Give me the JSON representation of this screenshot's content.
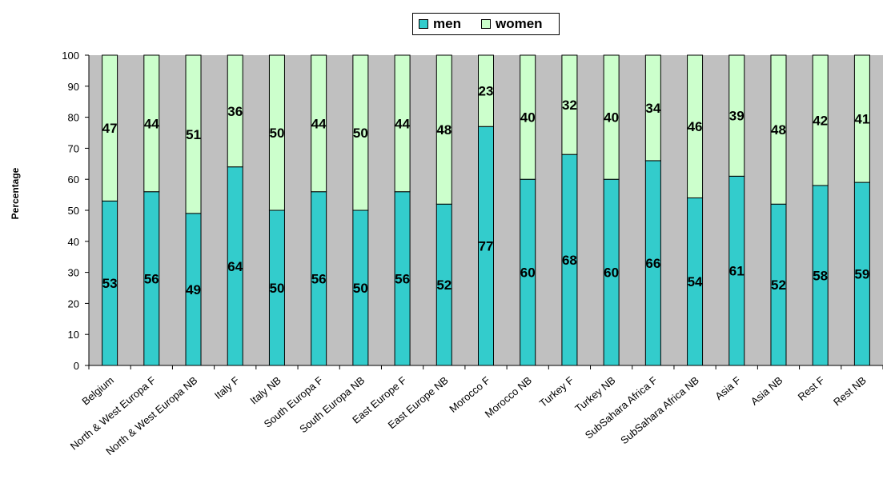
{
  "chart_data": {
    "type": "bar",
    "stacked": true,
    "percent_stacked": true,
    "title": "",
    "xlabel": "",
    "ylabel": "Percentage",
    "ylim": [
      0,
      100
    ],
    "yticks": [
      0,
      10,
      20,
      30,
      40,
      50,
      60,
      70,
      80,
      90,
      100
    ],
    "grid": false,
    "legend_position": "top",
    "plot_background": "#c0c0c0",
    "categories": [
      "Belgium",
      "North & West Europa F",
      "North & West Europa NB",
      "Italy F",
      "Italy NB",
      "South Europa F",
      "South Europa NB",
      "East Europe F",
      "East Europe NB",
      "Morocco F",
      "Morocco NB",
      "Turkey F",
      "Turkey NB",
      "SubSahara Africa F",
      "SubSahara Africa NB",
      "Asia F",
      "Asia NB",
      "Rest F",
      "Rest NB"
    ],
    "series": [
      {
        "name": "men",
        "color": "#33cccc",
        "values": [
          53,
          56,
          49,
          64,
          50,
          56,
          50,
          56,
          52,
          77,
          60,
          68,
          60,
          66,
          54,
          61,
          52,
          58,
          59
        ]
      },
      {
        "name": "women",
        "color": "#ccffcc",
        "values": [
          47,
          44,
          51,
          36,
          50,
          44,
          50,
          44,
          48,
          23,
          40,
          32,
          40,
          34,
          46,
          39,
          48,
          42,
          41
        ]
      }
    ]
  }
}
